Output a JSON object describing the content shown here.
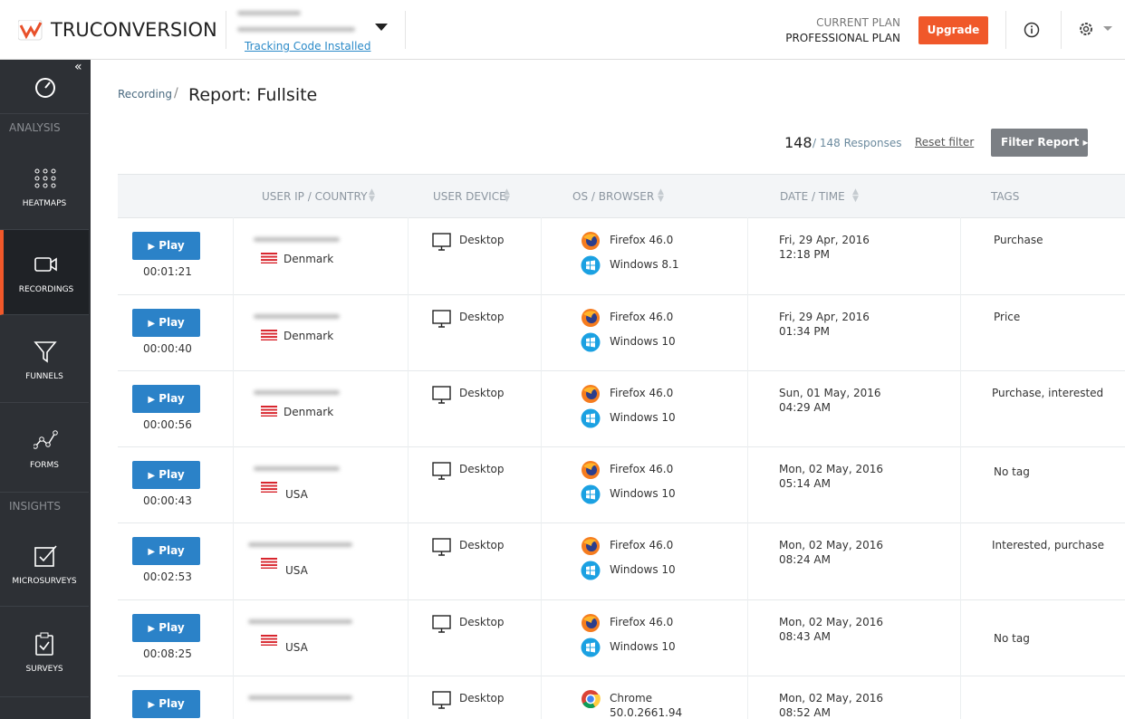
{
  "header": {
    "logo": "TRUCONVERSION",
    "tracking": "Tracking Code Installed",
    "plan_label": "CURRENT PLAN",
    "plan": "PROFESSIONAL PLAN",
    "upgrade": "Upgrade"
  },
  "sidebar": {
    "sections": [
      "ANALYSIS",
      "INSIGHTS"
    ],
    "items": [
      "HEATMAPS",
      "RECORDINGS",
      "FUNNELS",
      "FORMS",
      "MICROSURVEYS",
      "SURVEYS"
    ]
  },
  "breadcrumb": {
    "parent": "Recording",
    "separator": "/",
    "title": "Report: Fullsite"
  },
  "summary": {
    "count": "148",
    "total": "/ 148 Responses",
    "reset": "Reset filter",
    "filter": "Filter Report"
  },
  "table": {
    "columns": [
      "USER IP / COUNTRY",
      "USER DEVICE",
      "OS / BROWSER",
      "DATE / TIME",
      "TAGS"
    ],
    "play_label": "Play",
    "rows": [
      {
        "duration": "00:01:21",
        "country": "Denmark",
        "device": "Desktop",
        "browser": "Firefox 46.0",
        "os": "Windows 8.1",
        "date": "Fri, 29 Apr, 2016",
        "time": "12:18 PM",
        "tags": "Purchase"
      },
      {
        "duration": "00:00:40",
        "country": "Denmark",
        "device": "Desktop",
        "browser": "Firefox 46.0",
        "os": "Windows 10",
        "date": "Fri, 29 Apr, 2016",
        "time": "01:34 PM",
        "tags": "Price"
      },
      {
        "duration": "00:00:56",
        "country": "Denmark",
        "device": "Desktop",
        "browser": "Firefox 46.0",
        "os": "Windows 10",
        "date": "Sun, 01 May, 2016",
        "time": "04:29 AM",
        "tags": "Purchase, interested"
      },
      {
        "duration": "00:00:43",
        "country": "USA",
        "device": "Desktop",
        "browser": "Firefox 46.0",
        "os": "Windows 10",
        "date": "Mon, 02 May, 2016",
        "time": "05:14 AM",
        "tags": "No tag"
      },
      {
        "duration": "00:02:53",
        "country": "USA",
        "device": "Desktop",
        "browser": "Firefox 46.0",
        "os": "Windows 10",
        "date": "Mon, 02 May, 2016",
        "time": "08:24 AM",
        "tags": "Interested, purchase"
      },
      {
        "duration": "00:08:25",
        "country": "USA",
        "device": "Desktop",
        "browser": "Firefox 46.0",
        "os": "Windows 10",
        "date": "Mon, 02 May, 2016",
        "time": "08:43 AM",
        "tags": "No tag"
      },
      {
        "device": "Desktop",
        "browser": "Chrome",
        "browser_version": "50.0.2661.94",
        "date": "Mon, 02 May, 2016",
        "time": "08:52 AM"
      }
    ]
  }
}
